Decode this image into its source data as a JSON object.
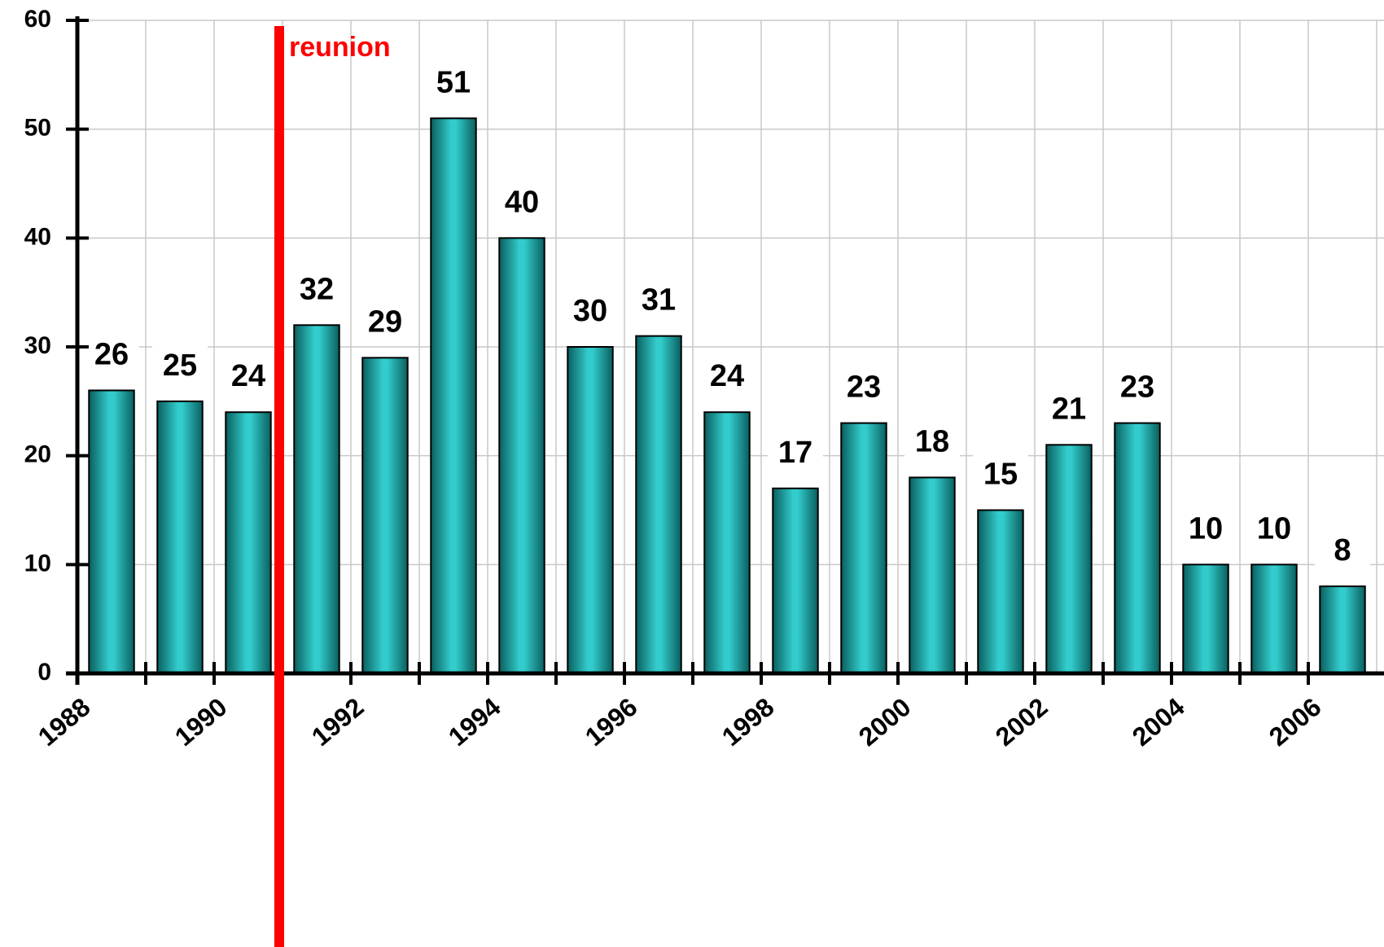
{
  "chart_data": {
    "type": "bar",
    "categories": [
      "1988",
      null,
      "1990",
      null,
      "1992",
      null,
      "1994",
      null,
      "1996",
      null,
      "1998",
      null,
      "2000",
      null,
      "2002",
      null,
      "2004",
      null,
      "2006"
    ],
    "values": [
      26,
      25,
      24,
      32,
      29,
      51,
      40,
      30,
      31,
      24,
      17,
      23,
      18,
      15,
      21,
      23,
      10,
      10,
      8
    ],
    "color": "#33cccc",
    "ylim": [
      0,
      60
    ],
    "yticks": [
      0,
      10,
      20,
      30,
      40,
      50,
      60
    ],
    "grid": true,
    "annotation": "reunion",
    "annotation_color": "#ff0000"
  }
}
